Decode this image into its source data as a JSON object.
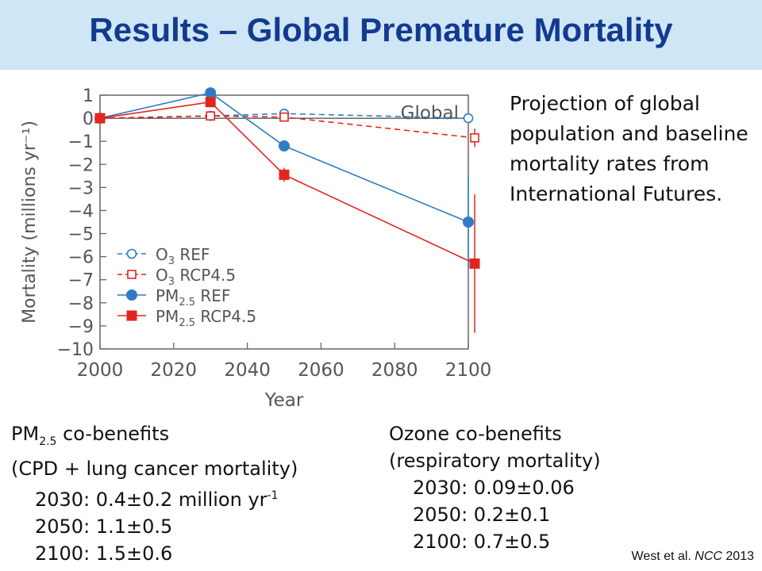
{
  "title": "Results – Global Premature Mortality",
  "side_note": "Projection of global population and baseline mortality rates from International Futures.",
  "pm_benefits": {
    "head_pre": "PM",
    "head_sub": "2.5",
    "head_post": " co-benefits",
    "subtitle": "(CPD + lung cancer mortality)",
    "l1_pre": "2030: 0.4±0.2 million yr",
    "l1_sup": "-1",
    "l2": "2050: 1.1±0.5",
    "l3": "2100: 1.5±0.6"
  },
  "ozone_benefits": {
    "head": "Ozone co-benefits",
    "subtitle": "(respiratory mortality)",
    "l1": "2030: 0.09±0.06",
    "l2": "2050: 0.2±0.1",
    "l3": "2100: 0.7±0.5"
  },
  "citation": {
    "pre": "West et al. ",
    "journal": "NCC",
    "year": " 2013"
  },
  "colors": {
    "header_bg": "#cfe6f7",
    "title": "#123a8f",
    "blue": "#2f7cc4",
    "red": "#e3261d"
  },
  "chart_data": {
    "type": "line",
    "panel_label": "Global",
    "xlabel": "Year",
    "ylabel": "Mortality (millions yr⁻¹)",
    "xlim": [
      2000,
      2100
    ],
    "ylim": [
      -10,
      1
    ],
    "xticks": [
      2000,
      2020,
      2040,
      2060,
      2080,
      2100
    ],
    "yticks": [
      1,
      0,
      -1,
      -2,
      -3,
      -4,
      -5,
      -6,
      -7,
      -8,
      -9,
      -10
    ],
    "series": [
      {
        "name": "O3 REF",
        "style": "open-circle-dashed",
        "color": "#2f7cc4",
        "x": [
          2000,
          2030,
          2050,
          2100
        ],
        "y": [
          0,
          0.1,
          0.2,
          0
        ],
        "err": [
          0,
          0.05,
          0.1,
          0.1
        ]
      },
      {
        "name": "O3 RCP4.5",
        "style": "open-square-dashed",
        "color": "#e3261d",
        "x": [
          2000,
          2030,
          2050,
          2100
        ],
        "y": [
          0,
          0.1,
          0.05,
          -0.85
        ],
        "err": [
          0,
          0.06,
          0.1,
          0.4
        ]
      },
      {
        "name": "PM2.5 REF",
        "style": "filled-circle-solid",
        "color": "#2f7cc4",
        "x": [
          2000,
          2030,
          2050,
          2100
        ],
        "y": [
          0,
          1.1,
          -1.2,
          -4.5
        ],
        "err": [
          0,
          0.15,
          0.2,
          2.0
        ]
      },
      {
        "name": "PM2.5 RCP4.5",
        "style": "filled-square-solid",
        "color": "#e3261d",
        "x": [
          2000,
          2030,
          2050,
          2100
        ],
        "y": [
          0,
          0.7,
          -2.45,
          -6.3
        ],
        "err": [
          0,
          0.2,
          0.3,
          3.0
        ]
      }
    ],
    "legend": [
      {
        "label_pre": "O",
        "label_sub": "3",
        "label_post": " REF"
      },
      {
        "label_pre": "O",
        "label_sub": "3",
        "label_post": " RCP4.5"
      },
      {
        "label_pre": "PM",
        "label_sub": "2.5",
        "label_post": " REF"
      },
      {
        "label_pre": "PM",
        "label_sub": "2.5",
        "label_post": " RCP4.5"
      }
    ],
    "legend_position": "bottom-left",
    "grid": false
  }
}
